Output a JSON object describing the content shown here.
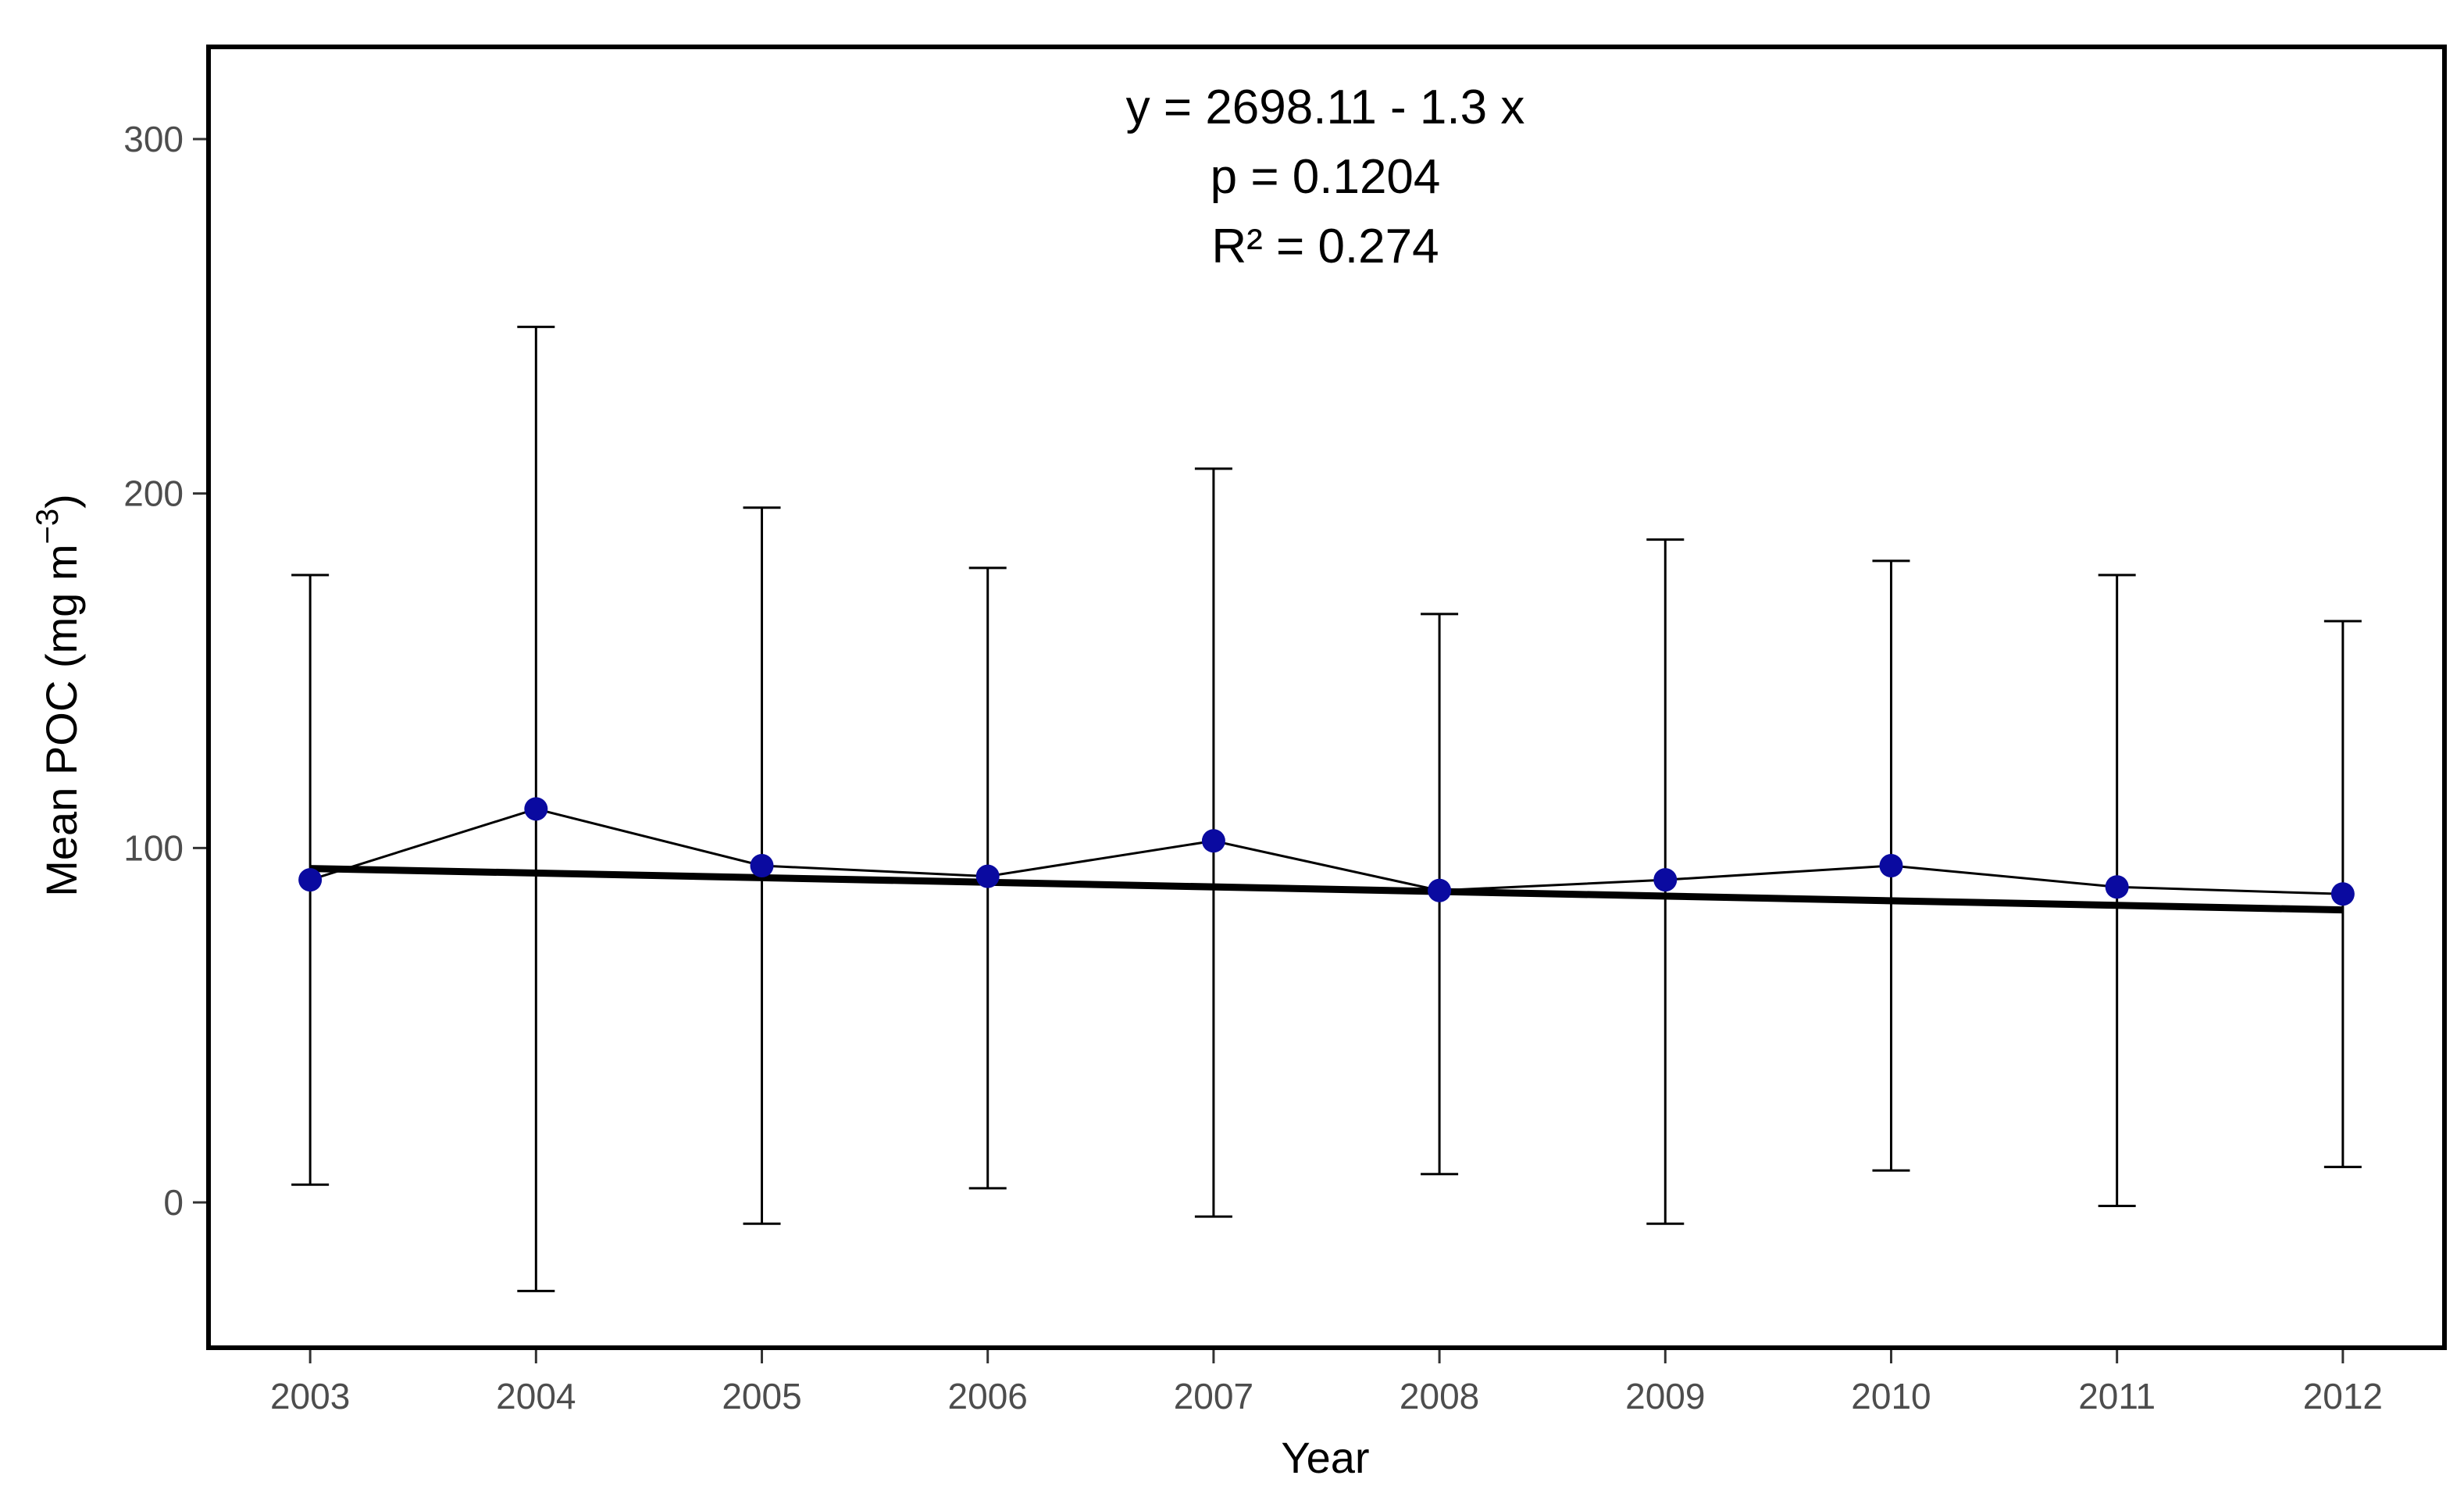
{
  "chart_data": {
    "type": "scatter",
    "xlabel": "Year",
    "ylabel": "Mean POC (mg m",
    "ylabel_superscript": "−3",
    "ylabel_suffix": ")",
    "x": [
      2003,
      2004,
      2005,
      2006,
      2007,
      2008,
      2009,
      2010,
      2011,
      2012
    ],
    "x_tick_labels": [
      "2003",
      "2004",
      "2005",
      "2006",
      "2007",
      "2008",
      "2009",
      "2010",
      "2011",
      "2012"
    ],
    "y_ticks": [
      0,
      100,
      200,
      300
    ],
    "y_tick_labels": [
      "0",
      "100",
      "200",
      "300"
    ],
    "xlim": [
      2002.55,
      2012.45
    ],
    "ylim": [
      -41,
      326
    ],
    "series": [
      {
        "values": [
          91,
          111,
          95,
          92,
          102,
          88,
          91,
          95,
          89,
          87
        ],
        "err_upper": [
          177,
          247,
          196,
          179,
          207,
          166,
          187,
          181,
          177,
          164
        ],
        "err_lower": [
          5,
          -25,
          -6,
          4,
          -4,
          8,
          -6,
          9,
          -1,
          10
        ],
        "marker_color": "#0a0aa0",
        "line_color": "#000000"
      }
    ],
    "trend_line": {
      "intercept": 2698.11,
      "slope": -1.3,
      "color": "#000000"
    },
    "annotations": [
      "y = 2698.11 - 1.3 x",
      "p = 0.1204",
      "R² = 0.274"
    ],
    "grid": false,
    "legend": "none"
  }
}
